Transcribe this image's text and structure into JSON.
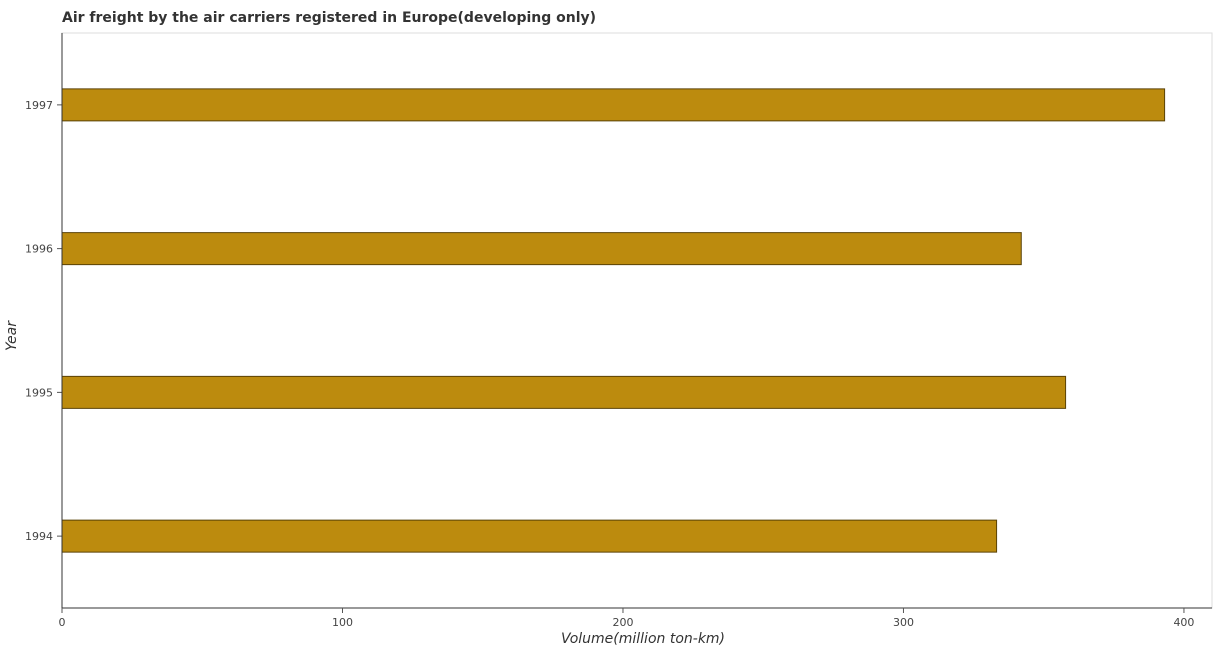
{
  "chart_data": {
    "type": "bar",
    "orientation": "horizontal",
    "title": "Air freight by the air carriers registered in Europe(developing only)",
    "xlabel": "Volume(million ton-km)",
    "ylabel": "Year",
    "categories": [
      "1994",
      "1995",
      "1996",
      "1997"
    ],
    "values": [
      333.2,
      357.8,
      342.0,
      393.1
    ],
    "xlim": [
      0,
      410
    ],
    "xticks": [
      0,
      100,
      200,
      300,
      400
    ],
    "grid": false,
    "legend": "none",
    "bar_color": "#bc8b0e",
    "bar_edge_color": "#5a4206"
  }
}
